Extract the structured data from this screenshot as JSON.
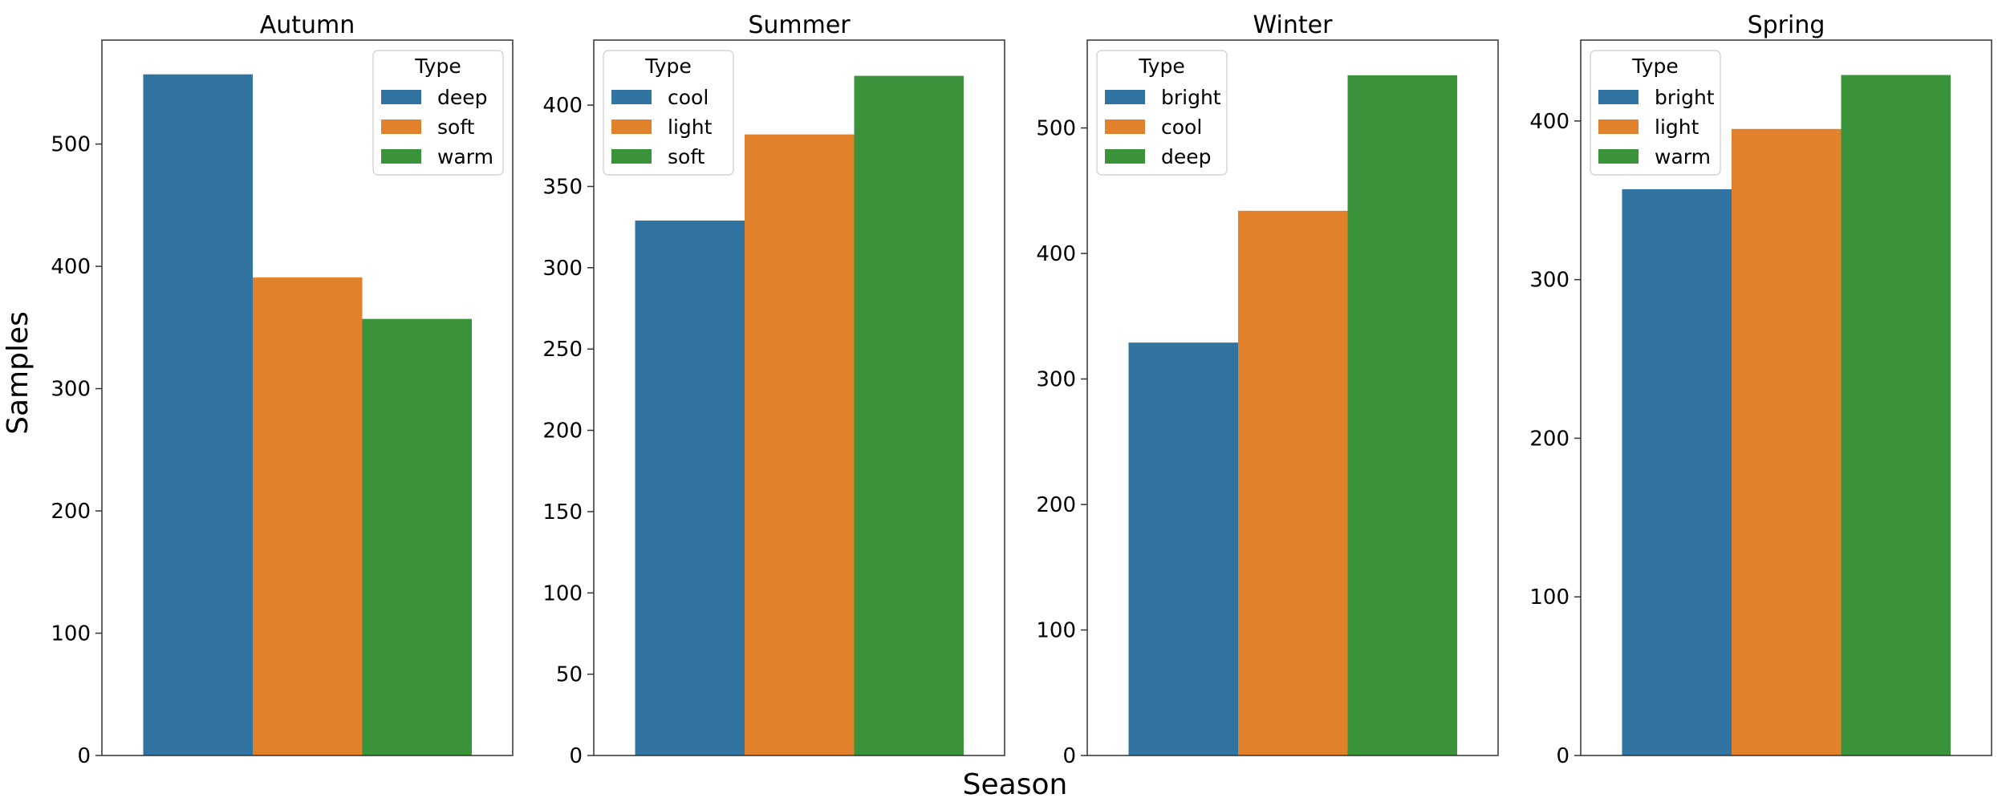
{
  "chart_data": {
    "type": "bar",
    "xlabel": "Season",
    "ylabel": "Samples",
    "legend_title": "Type",
    "colors": {
      "c0": "#3274a1",
      "c1": "#e1812c",
      "c2": "#3a923a"
    },
    "panels": [
      {
        "title": "Autumn",
        "ylim": [
          0,
          585
        ],
        "yticks": [
          0,
          100,
          200,
          300,
          400,
          500
        ],
        "legend_position": "upper right",
        "series": [
          {
            "name": "deep",
            "value": 557
          },
          {
            "name": "soft",
            "value": 391
          },
          {
            "name": "warm",
            "value": 357
          }
        ]
      },
      {
        "title": "Summer",
        "ylim": [
          0,
          440
        ],
        "yticks": [
          0,
          50,
          100,
          150,
          200,
          250,
          300,
          350,
          400
        ],
        "legend_position": "upper left",
        "series": [
          {
            "name": "cool",
            "value": 329
          },
          {
            "name": "light",
            "value": 382
          },
          {
            "name": "soft",
            "value": 418
          }
        ]
      },
      {
        "title": "Winter",
        "ylim": [
          0,
          570
        ],
        "yticks": [
          0,
          100,
          200,
          300,
          400,
          500
        ],
        "legend_position": "upper left",
        "series": [
          {
            "name": "bright",
            "value": 329
          },
          {
            "name": "cool",
            "value": 434
          },
          {
            "name": "deep",
            "value": 542
          }
        ]
      },
      {
        "title": "Spring",
        "ylim": [
          0,
          451
        ],
        "yticks": [
          0,
          100,
          200,
          300,
          400
        ],
        "legend_position": "upper left",
        "series": [
          {
            "name": "bright",
            "value": 357
          },
          {
            "name": "light",
            "value": 395
          },
          {
            "name": "warm",
            "value": 429
          }
        ]
      }
    ]
  }
}
